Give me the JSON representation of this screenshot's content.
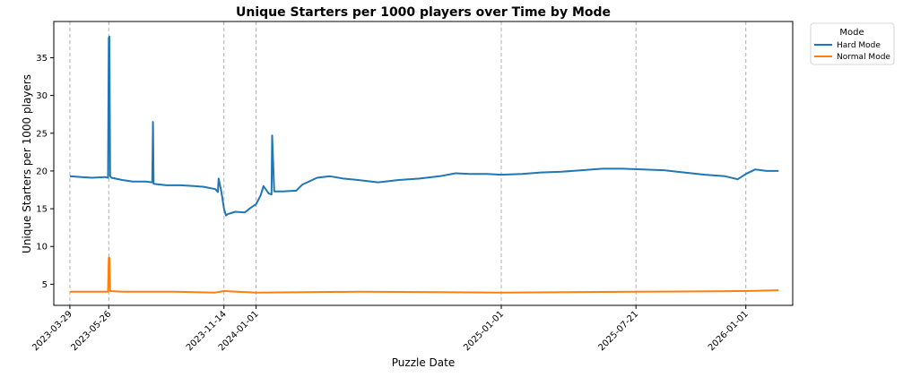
{
  "chart_data": {
    "type": "line",
    "title": "Unique Starters per 1000 players over Time by Mode",
    "xlabel": "Puzzle Date",
    "ylabel": "Unique Starters per 1000 players",
    "ylim": [
      2.2,
      39.8
    ],
    "yticks": [
      5,
      10,
      15,
      20,
      25,
      30,
      35
    ],
    "xlim": [
      "2023-03-05",
      "2026-03-12"
    ],
    "xticks": [
      "2023-03-29",
      "2023-05-26",
      "2023-11-14",
      "2024-01-01",
      "2025-01-01",
      "2025-07-21",
      "2026-01-01"
    ],
    "vlines": [
      "2023-03-29",
      "2023-05-26",
      "2023-11-14",
      "2024-01-01",
      "2025-01-01",
      "2025-07-21",
      "2026-01-01"
    ],
    "grid": false,
    "legend": {
      "title": "Mode",
      "placement": "outside-top-right"
    },
    "series": [
      {
        "name": "Hard Mode",
        "color": "#1f77b4",
        "x": [
          "2023-03-29",
          "2023-04-15",
          "2023-05-01",
          "2023-05-20",
          "2023-05-25",
          "2023-05-26",
          "2023-05-27",
          "2023-05-28",
          "2023-05-30",
          "2023-06-15",
          "2023-07-01",
          "2023-07-20",
          "2023-07-30",
          "2023-07-31",
          "2023-08-01",
          "2023-08-20",
          "2023-09-10",
          "2023-09-30",
          "2023-10-15",
          "2023-11-01",
          "2023-11-05",
          "2023-11-06",
          "2023-11-10",
          "2023-11-14",
          "2023-11-17",
          "2023-11-20",
          "2023-12-01",
          "2023-12-15",
          "2023-12-25",
          "2024-01-01",
          "2024-01-08",
          "2024-01-12",
          "2024-01-20",
          "2024-01-24",
          "2024-01-25",
          "2024-01-28",
          "2024-02-10",
          "2024-03-01",
          "2024-03-10",
          "2024-04-01",
          "2024-04-20",
          "2024-05-10",
          "2024-06-01",
          "2024-07-01",
          "2024-08-01",
          "2024-09-01",
          "2024-10-01",
          "2024-10-25",
          "2024-11-15",
          "2024-12-10",
          "2025-01-01",
          "2025-02-01",
          "2025-03-01",
          "2025-04-01",
          "2025-05-01",
          "2025-06-01",
          "2025-07-01",
          "2025-08-01",
          "2025-09-01",
          "2025-10-01",
          "2025-11-01",
          "2025-12-01",
          "2025-12-20",
          "2026-01-01",
          "2026-01-15",
          "2026-02-01",
          "2026-02-19"
        ],
        "values": [
          19.3,
          19.2,
          19.1,
          19.2,
          19.1,
          37.6,
          37.8,
          19.3,
          19.1,
          18.8,
          18.6,
          18.6,
          18.5,
          26.5,
          18.3,
          18.1,
          18.1,
          18.0,
          17.9,
          17.6,
          17.2,
          19.0,
          17.3,
          15.0,
          14.1,
          14.3,
          14.6,
          14.5,
          15.2,
          15.6,
          16.8,
          18.0,
          17.0,
          16.9,
          24.7,
          17.3,
          17.3,
          17.4,
          18.2,
          19.1,
          19.3,
          19.0,
          18.8,
          18.5,
          18.8,
          19.0,
          19.3,
          19.7,
          19.6,
          19.6,
          19.5,
          19.6,
          19.8,
          19.9,
          20.1,
          20.3,
          20.3,
          20.2,
          20.1,
          19.8,
          19.5,
          19.3,
          18.9,
          19.6,
          20.2,
          20.0,
          20.0
        ]
      },
      {
        "name": "Normal Mode",
        "color": "#ff7f0e",
        "x": [
          "2023-03-29",
          "2023-05-20",
          "2023-05-25",
          "2023-05-26",
          "2023-05-27",
          "2023-05-28",
          "2023-06-15",
          "2023-09-01",
          "2023-11-01",
          "2023-11-14",
          "2024-01-01",
          "2024-06-01",
          "2025-01-01",
          "2025-07-21",
          "2026-01-01",
          "2026-02-19"
        ],
        "values": [
          4.0,
          4.0,
          4.0,
          8.5,
          8.5,
          4.1,
          4.0,
          4.0,
          3.9,
          4.1,
          3.9,
          4.0,
          3.9,
          4.0,
          4.1,
          4.2
        ]
      }
    ]
  }
}
